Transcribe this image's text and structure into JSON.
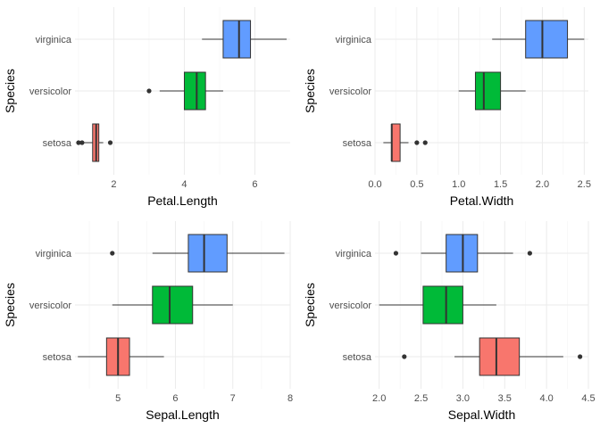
{
  "chart_data": [
    {
      "type": "boxplot",
      "orientation": "horizontal",
      "xlabel": "Petal.Length",
      "ylabel": "Species",
      "categories": [
        "setosa",
        "versicolor",
        "virginica"
      ],
      "xlim": [
        0.9,
        7.0
      ],
      "xticks": [
        2,
        4,
        6
      ],
      "grid": true,
      "boxes": [
        {
          "category": "setosa",
          "min": 1.1,
          "q1": 1.4,
          "median": 1.5,
          "q3": 1.575,
          "max": 1.7,
          "outliers": [
            1.0,
            1.1,
            1.9
          ],
          "color": "#F8766D"
        },
        {
          "category": "versicolor",
          "min": 3.3,
          "q1": 4.0,
          "median": 4.35,
          "q3": 4.6,
          "max": 5.1,
          "outliers": [
            3.0
          ],
          "color": "#00BA38"
        },
        {
          "category": "virginica",
          "min": 4.5,
          "q1": 5.1,
          "median": 5.55,
          "q3": 5.875,
          "max": 6.9,
          "outliers": [],
          "color": "#619CFF"
        }
      ]
    },
    {
      "type": "boxplot",
      "orientation": "horizontal",
      "xlabel": "Petal.Width",
      "ylabel": "Species",
      "categories": [
        "setosa",
        "versicolor",
        "virginica"
      ],
      "xlim": [
        0.0,
        2.55
      ],
      "xticks": [
        0.0,
        0.5,
        1.0,
        1.5,
        2.0,
        2.5
      ],
      "xtick_labels": [
        "0.0",
        "0.5",
        "1.0",
        "1.5",
        "2.0",
        "2.5"
      ],
      "grid": true,
      "boxes": [
        {
          "category": "setosa",
          "min": 0.1,
          "q1": 0.2,
          "median": 0.2,
          "q3": 0.3,
          "max": 0.4,
          "outliers": [
            0.5,
            0.6
          ],
          "color": "#F8766D"
        },
        {
          "category": "versicolor",
          "min": 1.0,
          "q1": 1.2,
          "median": 1.3,
          "q3": 1.5,
          "max": 1.8,
          "outliers": [],
          "color": "#00BA38"
        },
        {
          "category": "virginica",
          "min": 1.4,
          "q1": 1.8,
          "median": 2.0,
          "q3": 2.3,
          "max": 2.5,
          "outliers": [],
          "color": "#619CFF"
        }
      ]
    },
    {
      "type": "boxplot",
      "orientation": "horizontal",
      "xlabel": "Sepal.Length",
      "ylabel": "Species",
      "categories": [
        "setosa",
        "versicolor",
        "virginica"
      ],
      "xlim": [
        4.25,
        8.0
      ],
      "xticks": [
        5,
        6,
        7,
        8
      ],
      "grid": true,
      "boxes": [
        {
          "category": "setosa",
          "min": 4.3,
          "q1": 4.8,
          "median": 5.0,
          "q3": 5.2,
          "max": 5.8,
          "outliers": [],
          "color": "#F8766D"
        },
        {
          "category": "versicolor",
          "min": 4.9,
          "q1": 5.6,
          "median": 5.9,
          "q3": 6.3,
          "max": 7.0,
          "outliers": [],
          "color": "#00BA38"
        },
        {
          "category": "virginica",
          "min": 5.6,
          "q1": 6.225,
          "median": 6.5,
          "q3": 6.9,
          "max": 7.9,
          "outliers": [
            4.9
          ],
          "color": "#619CFF"
        }
      ]
    },
    {
      "type": "boxplot",
      "orientation": "horizontal",
      "xlabel": "Sepal.Width",
      "ylabel": "Species",
      "categories": [
        "setosa",
        "versicolor",
        "virginica"
      ],
      "xlim": [
        1.95,
        4.5
      ],
      "xticks": [
        2.0,
        2.5,
        3.0,
        3.5,
        4.0,
        4.5
      ],
      "xtick_labels": [
        "2.0",
        "2.5",
        "3.0",
        "3.5",
        "4.0",
        "4.5"
      ],
      "grid": true,
      "boxes": [
        {
          "category": "setosa",
          "min": 2.9,
          "q1": 3.2,
          "median": 3.4,
          "q3": 3.675,
          "max": 4.2,
          "outliers": [
            2.3,
            4.4
          ],
          "color": "#F8766D"
        },
        {
          "category": "versicolor",
          "min": 2.0,
          "q1": 2.525,
          "median": 2.8,
          "q3": 3.0,
          "max": 3.4,
          "outliers": [],
          "color": "#00BA38"
        },
        {
          "category": "virginica",
          "min": 2.5,
          "q1": 2.8,
          "median": 3.0,
          "q3": 3.175,
          "max": 3.6,
          "outliers": [
            2.2,
            3.8
          ],
          "color": "#619CFF"
        }
      ]
    }
  ]
}
